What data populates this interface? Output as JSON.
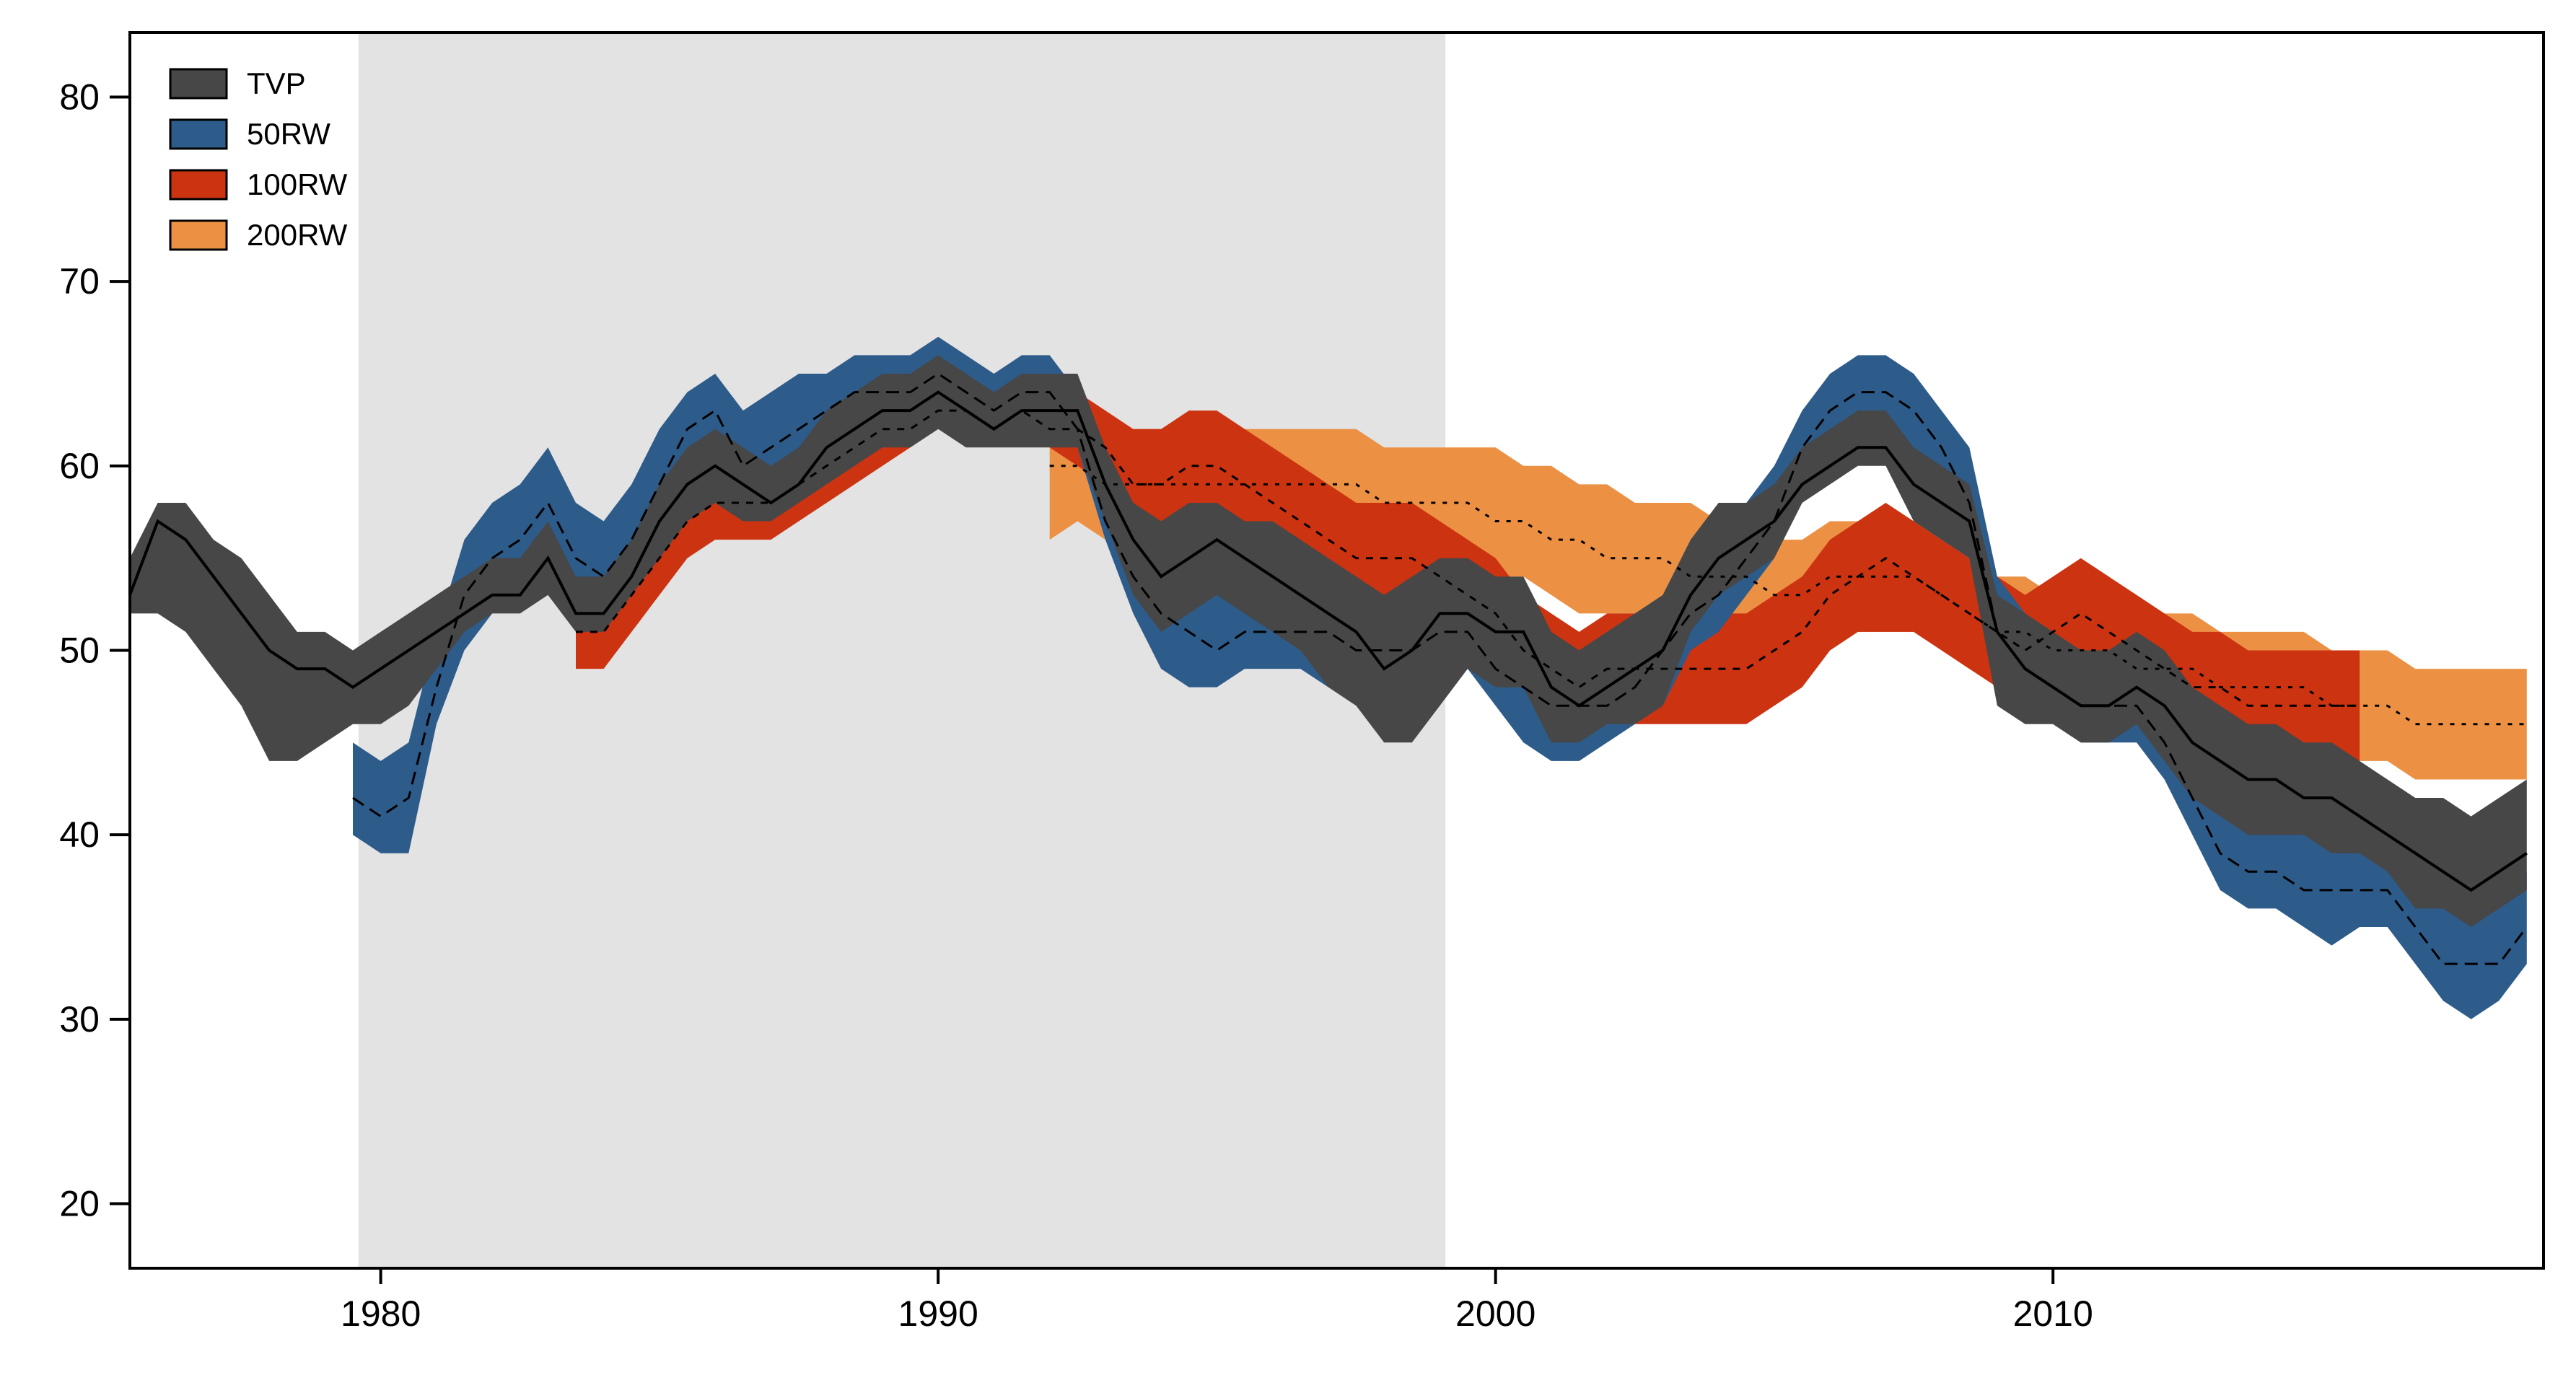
{
  "chart_data": {
    "type": "area",
    "title": "",
    "xlabel": "",
    "ylabel": "",
    "xlim": [
      1975.5,
      2018.8
    ],
    "ylim": [
      16.5,
      83.5
    ],
    "x_ticks": [
      1980,
      1990,
      2000,
      2010
    ],
    "y_ticks": [
      20,
      30,
      40,
      50,
      60,
      70,
      80
    ],
    "grid": false,
    "legend_position": "top-left",
    "shaded_period": [
      1979.6,
      1999.1
    ],
    "colors": {
      "TVP": "#474747",
      "50RW": "#2d5b8a",
      "100RW": "#cc3311",
      "200RW": "#ec9044",
      "shade": "#e3e3e3"
    },
    "series": [
      {
        "name": "TVP",
        "x": [
          1975.5,
          1976.0,
          1976.5,
          1977.0,
          1977.5,
          1978.0,
          1978.5,
          1979.0,
          1979.5,
          1980.0,
          1980.5,
          1981.0,
          1981.5,
          1982.0,
          1982.5,
          1983.0,
          1983.5,
          1984.0,
          1984.5,
          1985.0,
          1985.5,
          1986.0,
          1986.5,
          1987.0,
          1987.5,
          1988.0,
          1988.5,
          1989.0,
          1989.5,
          1990.0,
          1990.5,
          1991.0,
          1991.5,
          1992.0,
          1992.5,
          1993.0,
          1993.5,
          1994.0,
          1994.5,
          1995.0,
          1995.5,
          1996.0,
          1996.5,
          1997.0,
          1997.5,
          1998.0,
          1998.5,
          1999.0,
          1999.5,
          2000.0,
          2000.5,
          2001.0,
          2001.5,
          2002.0,
          2002.5,
          2003.0,
          2003.5,
          2004.0,
          2004.5,
          2005.0,
          2005.5,
          2006.0,
          2006.5,
          2007.0,
          2007.5,
          2008.0,
          2008.5,
          2009.0,
          2009.5,
          2010.0,
          2010.5,
          2011.0,
          2011.5,
          2012.0,
          2012.5,
          2013.0,
          2013.5,
          2014.0,
          2014.5,
          2015.0,
          2015.5,
          2016.0,
          2016.5,
          2017.0,
          2017.5,
          2018.0,
          2018.5
        ],
        "lower": [
          52,
          52,
          51,
          49,
          47,
          44,
          44,
          45,
          46,
          46,
          47,
          49,
          51,
          52,
          52,
          53,
          51,
          51,
          53,
          55,
          57,
          58,
          57,
          57,
          58,
          59,
          60,
          61,
          61,
          62,
          61,
          61,
          61,
          61,
          61,
          57,
          53,
          51,
          52,
          53,
          52,
          51,
          50,
          48,
          47,
          45,
          45,
          47,
          49,
          48,
          48,
          45,
          45,
          46,
          46,
          47,
          51,
          53,
          54,
          55,
          58,
          59,
          60,
          60,
          57,
          56,
          55,
          47,
          46,
          46,
          45,
          45,
          46,
          44,
          42,
          41,
          40,
          40,
          40,
          39,
          39,
          38,
          36,
          36,
          35,
          36,
          37
        ],
        "center": [
          53,
          57,
          56,
          54,
          52,
          50,
          49,
          49,
          48,
          49,
          50,
          51,
          52,
          53,
          53,
          55,
          52,
          52,
          54,
          57,
          59,
          60,
          59,
          58,
          59,
          61,
          62,
          63,
          63,
          64,
          63,
          62,
          63,
          63,
          63,
          59,
          56,
          54,
          55,
          56,
          55,
          54,
          53,
          52,
          51,
          49,
          50,
          52,
          52,
          51,
          51,
          48,
          47,
          48,
          49,
          50,
          53,
          55,
          56,
          57,
          59,
          60,
          61,
          61,
          59,
          58,
          57,
          51,
          49,
          48,
          47,
          47,
          48,
          47,
          45,
          44,
          43,
          43,
          42,
          42,
          41,
          40,
          39,
          38,
          37,
          38,
          39
        ],
        "upper": [
          55,
          58,
          58,
          56,
          55,
          53,
          51,
          51,
          50,
          51,
          52,
          53,
          54,
          55,
          55,
          57,
          54,
          54,
          56,
          59,
          61,
          62,
          61,
          60,
          61,
          63,
          64,
          65,
          65,
          66,
          65,
          64,
          65,
          65,
          65,
          61,
          58,
          57,
          58,
          58,
          57,
          57,
          56,
          55,
          54,
          53,
          54,
          55,
          55,
          54,
          54,
          51,
          50,
          51,
          52,
          53,
          56,
          58,
          58,
          59,
          61,
          62,
          63,
          63,
          61,
          60,
          59,
          53,
          52,
          51,
          50,
          50,
          51,
          50,
          48,
          47,
          46,
          46,
          45,
          45,
          44,
          43,
          42,
          42,
          41,
          42,
          43
        ]
      },
      {
        "name": "50RW",
        "x": [
          1979.5,
          1980.0,
          1980.5,
          1981.0,
          1981.5,
          1982.0,
          1982.5,
          1983.0,
          1983.5,
          1984.0,
          1984.5,
          1985.0,
          1985.5,
          1986.0,
          1986.5,
          1987.0,
          1987.5,
          1988.0,
          1988.5,
          1989.0,
          1989.5,
          1990.0,
          1990.5,
          1991.0,
          1991.5,
          1992.0,
          1992.5,
          1993.0,
          1993.5,
          1994.0,
          1994.5,
          1995.0,
          1995.5,
          1996.0,
          1996.5,
          1997.0,
          1997.5,
          1998.0,
          1998.5,
          1999.0,
          1999.5,
          2000.0,
          2000.5,
          2001.0,
          2001.5,
          2002.0,
          2002.5,
          2003.0,
          2003.5,
          2004.0,
          2004.5,
          2005.0,
          2005.5,
          2006.0,
          2006.5,
          2007.0,
          2007.5,
          2008.0,
          2008.5,
          2009.0,
          2009.5,
          2010.0,
          2010.5,
          2011.0,
          2011.5,
          2012.0,
          2012.5,
          2013.0,
          2013.5,
          2014.0,
          2014.5,
          2015.0,
          2015.5,
          2016.0,
          2016.5,
          2017.0,
          2017.5,
          2018.0,
          2018.5
        ],
        "lower": [
          40,
          39,
          39,
          46,
          50,
          52,
          53,
          56,
          53,
          51,
          53,
          56,
          59,
          61,
          58,
          59,
          60,
          61,
          62,
          63,
          63,
          64,
          63,
          62,
          63,
          63,
          61,
          56,
          52,
          49,
          48,
          48,
          49,
          49,
          49,
          48,
          48,
          47,
          47,
          49,
          49,
          47,
          45,
          44,
          44,
          45,
          46,
          47,
          50,
          51,
          53,
          55,
          59,
          61,
          62,
          62,
          61,
          59,
          56,
          49,
          47,
          46,
          45,
          45,
          45,
          43,
          40,
          37,
          36,
          36,
          35,
          34,
          35,
          35,
          33,
          31,
          30,
          31,
          33
        ],
        "center": [
          42,
          41,
          42,
          48,
          53,
          55,
          56,
          58,
          55,
          54,
          56,
          59,
          62,
          63,
          60,
          61,
          62,
          63,
          64,
          64,
          64,
          65,
          64,
          63,
          64,
          64,
          62,
          57,
          54,
          52,
          51,
          50,
          51,
          51,
          51,
          51,
          50,
          50,
          50,
          51,
          51,
          49,
          48,
          47,
          47,
          47,
          48,
          50,
          52,
          53,
          55,
          57,
          61,
          63,
          64,
          64,
          63,
          61,
          58,
          51,
          49,
          48,
          47,
          47,
          47,
          45,
          42,
          39,
          38,
          38,
          37,
          37,
          37,
          37,
          35,
          33,
          33,
          33,
          35
        ],
        "upper": [
          45,
          44,
          45,
          51,
          56,
          58,
          59,
          61,
          58,
          57,
          59,
          62,
          64,
          65,
          63,
          64,
          65,
          65,
          66,
          66,
          66,
          67,
          66,
          65,
          66,
          66,
          64,
          59,
          56,
          55,
          54,
          53,
          53,
          53,
          54,
          53,
          53,
          53,
          53,
          53,
          53,
          52,
          51,
          50,
          50,
          50,
          51,
          53,
          55,
          56,
          58,
          60,
          63,
          65,
          66,
          66,
          65,
          63,
          61,
          54,
          52,
          51,
          50,
          50,
          50,
          48,
          45,
          42,
          41,
          41,
          40,
          40,
          40,
          40,
          38,
          36,
          36,
          36,
          38
        ]
      },
      {
        "name": "100RW",
        "x": [
          1983.5,
          1984.0,
          1984.5,
          1985.0,
          1985.5,
          1986.0,
          1986.5,
          1987.0,
          1987.5,
          1988.0,
          1988.5,
          1989.0,
          1989.5,
          1990.0,
          1990.5,
          1991.0,
          1991.5,
          1992.0,
          1992.5,
          1993.0,
          1993.5,
          1994.0,
          1994.5,
          1995.0,
          1995.5,
          1996.0,
          1996.5,
          1997.0,
          1997.5,
          1998.0,
          1998.5,
          1999.0,
          1999.5,
          2000.0,
          2000.5,
          2001.0,
          2001.5,
          2002.0,
          2002.5,
          2003.0,
          2003.5,
          2004.0,
          2004.5,
          2005.0,
          2005.5,
          2006.0,
          2006.5,
          2007.0,
          2007.5,
          2008.0,
          2008.5,
          2009.0,
          2009.5,
          2010.0,
          2010.5,
          2011.0,
          2011.5,
          2012.0,
          2012.5,
          2013.0,
          2013.5,
          2014.0,
          2014.5,
          2015.0,
          2015.5
        ],
        "lower": [
          49,
          49,
          51,
          53,
          55,
          56,
          56,
          56,
          57,
          58,
          59,
          60,
          61,
          62,
          62,
          61,
          62,
          61,
          60,
          59,
          57,
          56,
          57,
          57,
          56,
          55,
          54,
          53,
          52,
          52,
          52,
          51,
          50,
          49,
          47,
          46,
          45,
          46,
          46,
          46,
          46,
          46,
          46,
          47,
          48,
          50,
          51,
          51,
          51,
          50,
          49,
          48,
          47,
          48,
          49,
          48,
          47,
          46,
          45,
          45,
          44,
          44,
          44,
          44,
          44
        ],
        "center": [
          51,
          51,
          53,
          55,
          57,
          58,
          58,
          58,
          59,
          60,
          61,
          62,
          62,
          63,
          63,
          62,
          63,
          62,
          62,
          61,
          59,
          59,
          60,
          60,
          59,
          58,
          57,
          56,
          55,
          55,
          55,
          54,
          53,
          52,
          50,
          49,
          48,
          49,
          49,
          49,
          49,
          49,
          49,
          50,
          51,
          53,
          54,
          55,
          54,
          53,
          52,
          51,
          50,
          51,
          52,
          51,
          50,
          49,
          48,
          48,
          47,
          47,
          47,
          47,
          47
        ],
        "upper": [
          54,
          54,
          55,
          57,
          59,
          60,
          60,
          60,
          61,
          62,
          63,
          64,
          64,
          65,
          65,
          64,
          65,
          64,
          64,
          63,
          62,
          62,
          63,
          63,
          62,
          61,
          60,
          59,
          58,
          58,
          58,
          57,
          56,
          55,
          53,
          52,
          51,
          52,
          52,
          52,
          52,
          52,
          52,
          53,
          54,
          56,
          57,
          58,
          57,
          56,
          55,
          54,
          53,
          54,
          55,
          54,
          53,
          52,
          51,
          51,
          50,
          50,
          50,
          50,
          50
        ]
      },
      {
        "name": "200RW",
        "x": [
          1992.0,
          1992.5,
          1993.0,
          1993.5,
          1994.0,
          1994.5,
          1995.0,
          1995.5,
          1996.0,
          1996.5,
          1997.0,
          1997.5,
          1998.0,
          1998.5,
          1999.0,
          1999.5,
          2000.0,
          2000.5,
          2001.0,
          2001.5,
          2002.0,
          2002.5,
          2003.0,
          2003.5,
          2004.0,
          2004.5,
          2005.0,
          2005.5,
          2006.0,
          2006.5,
          2007.0,
          2007.5,
          2008.0,
          2008.5,
          2009.0,
          2009.5,
          2010.0,
          2010.5,
          2011.0,
          2011.5,
          2012.0,
          2012.5,
          2013.0,
          2013.5,
          2014.0,
          2014.5,
          2015.0,
          2015.5,
          2016.0,
          2016.5,
          2017.0,
          2017.5,
          2018.0,
          2018.5
        ],
        "lower": [
          56,
          57,
          56,
          56,
          57,
          57,
          57,
          56,
          56,
          56,
          56,
          56,
          56,
          55,
          55,
          55,
          54,
          54,
          53,
          52,
          52,
          52,
          52,
          51,
          51,
          50,
          50,
          50,
          50,
          51,
          51,
          51,
          50,
          49,
          49,
          48,
          48,
          47,
          47,
          47,
          47,
          46,
          46,
          46,
          45,
          45,
          44,
          44,
          44,
          43,
          43,
          43,
          43,
          43
        ],
        "center": [
          60,
          60,
          59,
          59,
          59,
          59,
          59,
          59,
          59,
          59,
          59,
          59,
          58,
          58,
          58,
          58,
          57,
          57,
          56,
          56,
          55,
          55,
          55,
          54,
          54,
          54,
          53,
          53,
          54,
          54,
          54,
          54,
          53,
          52,
          51,
          51,
          50,
          50,
          50,
          49,
          49,
          49,
          48,
          48,
          48,
          48,
          47,
          47,
          47,
          46,
          46,
          46,
          46,
          46
        ],
        "upper": [
          63,
          63,
          62,
          62,
          62,
          62,
          62,
          62,
          62,
          62,
          62,
          62,
          61,
          61,
          61,
          61,
          61,
          60,
          60,
          59,
          59,
          58,
          58,
          58,
          57,
          57,
          56,
          56,
          57,
          57,
          57,
          57,
          56,
          55,
          54,
          54,
          53,
          53,
          53,
          52,
          52,
          52,
          51,
          51,
          51,
          51,
          50,
          50,
          50,
          49,
          49,
          49,
          49,
          49
        ]
      }
    ]
  }
}
